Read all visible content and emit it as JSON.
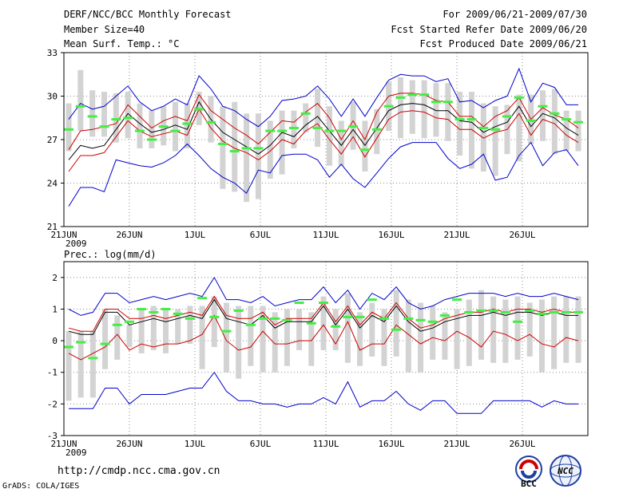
{
  "header": {
    "title": "DERF/NCC/BCC Monthly Forecast",
    "member_size": "Member Size=40",
    "variable": "Mean Surf. Temp.: °C",
    "period": "For 2009/06/21-2009/07/30",
    "started": "Fcst Started Refer Date 2009/06/20",
    "produced": "Fcst Produced Date 2009/06/21"
  },
  "footer": {
    "url": "http://cmdp.ncc.cma.gov.cn",
    "grads": "GrADS: COLA/IGES",
    "logo_left": "BCC",
    "logo_right": "NCC"
  },
  "colors": {
    "mean": "#000000",
    "inner_band": "#cc0000",
    "outer_band": "#0000cc",
    "box": "#d3d3d3",
    "climate": "#44ee44",
    "grid": "#888888"
  },
  "chart_data": [
    {
      "type": "line",
      "title": "Mean Surf. Temp.: °C",
      "x_tick_labels": [
        "21JUN",
        "26JUN",
        "1JUL",
        "6JUL",
        "11JUL",
        "16JUL",
        "21JUL",
        "26JUL"
      ],
      "x_year_label": "2009",
      "x_days": 40,
      "ylim": [
        21,
        33
      ],
      "y_ticks": [
        21,
        24,
        27,
        30,
        33
      ],
      "series": [
        {
          "name": "ensemble_mean",
          "values": [
            25.6,
            26.6,
            26.4,
            26.6,
            27.7,
            28.8,
            28.1,
            27.5,
            27.7,
            28.0,
            27.7,
            29.6,
            28.4,
            27.5,
            27.0,
            26.5,
            26.0,
            26.6,
            27.5,
            27.2,
            28.0,
            28.6,
            27.6,
            26.6,
            27.7,
            26.6,
            27.8,
            29.0,
            29.4,
            29.5,
            29.4,
            29.0,
            29.0,
            28.3,
            28.2,
            27.5,
            27.9,
            28.2,
            29.3,
            27.9,
            28.8,
            28.5,
            27.8,
            27.3
          ]
        },
        {
          "name": "upper_inner",
          "values": [
            26.3,
            27.6,
            27.7,
            27.9,
            28.1,
            29.4,
            28.6,
            27.8,
            28.3,
            28.6,
            28.3,
            30.1,
            29.0,
            28.4,
            27.8,
            27.3,
            26.7,
            27.5,
            28.3,
            28.2,
            28.9,
            29.5,
            28.5,
            27.0,
            28.3,
            27.0,
            28.9,
            30.0,
            30.2,
            30.2,
            30.1,
            29.7,
            29.6,
            28.6,
            28.6,
            27.9,
            28.6,
            29.0,
            29.9,
            28.4,
            29.2,
            28.7,
            28.4,
            27.8
          ]
        },
        {
          "name": "lower_inner",
          "values": [
            24.8,
            25.9,
            25.9,
            26.1,
            27.2,
            28.3,
            27.6,
            27.2,
            27.4,
            27.6,
            27.3,
            29.1,
            27.8,
            26.9,
            26.4,
            26.1,
            25.6,
            26.2,
            27.0,
            26.7,
            27.6,
            28.1,
            27.0,
            26.0,
            27.2,
            25.8,
            27.1,
            28.4,
            28.9,
            29.0,
            28.9,
            28.5,
            28.4,
            27.7,
            27.7,
            27.1,
            27.5,
            27.7,
            28.8,
            27.3,
            28.4,
            28.1,
            27.3,
            26.8
          ]
        },
        {
          "name": "upper_outer",
          "values": [
            28.4,
            29.5,
            29.1,
            29.3,
            30.0,
            30.7,
            29.6,
            29.0,
            29.3,
            29.8,
            29.4,
            31.4,
            30.5,
            29.3,
            29.0,
            28.4,
            27.9,
            28.6,
            29.7,
            29.8,
            30.0,
            30.7,
            29.8,
            28.6,
            29.8,
            28.6,
            29.9,
            31.1,
            31.5,
            31.4,
            31.4,
            31.0,
            31.2,
            29.6,
            29.7,
            29.2,
            29.7,
            30.0,
            31.9,
            29.6,
            30.9,
            30.6,
            29.4,
            29.4
          ]
        },
        {
          "name": "lower_outer",
          "values": [
            22.4,
            23.7,
            23.7,
            23.4,
            25.6,
            25.4,
            25.2,
            25.1,
            25.4,
            25.9,
            26.7,
            25.9,
            25.0,
            24.4,
            24.0,
            23.3,
            24.9,
            24.7,
            25.9,
            26.0,
            26.0,
            25.6,
            24.4,
            25.3,
            24.3,
            23.7,
            24.7,
            25.7,
            26.5,
            26.8,
            26.8,
            26.8,
            25.7,
            25.0,
            25.3,
            26.0,
            24.2,
            24.4,
            25.9,
            26.8,
            25.2,
            26.1,
            26.3,
            25.2
          ]
        }
      ],
      "boxes": {
        "high": [
          29.5,
          31.8,
          30.4,
          30.3,
          30.2,
          30.3,
          29.5,
          29.0,
          29.3,
          29.6,
          29.5,
          30.3,
          30.0,
          29.3,
          29.6,
          28.8,
          28.8,
          28.3,
          29.0,
          29.0,
          29.5,
          30.5,
          29.3,
          28.3,
          29.6,
          28.3,
          29.1,
          31.0,
          31.3,
          31.1,
          31.1,
          30.9,
          30.9,
          30.3,
          30.3,
          29.5,
          29.3,
          29.4,
          30.1,
          30.1,
          30.4,
          30.5,
          29.0,
          29.0
        ],
        "low": [
          26.2,
          27.6,
          27.2,
          27.2,
          26.8,
          27.1,
          26.4,
          26.4,
          26.6,
          26.2,
          26.4,
          28.0,
          26.8,
          23.6,
          23.4,
          22.7,
          22.9,
          24.3,
          24.6,
          26.4,
          27.5,
          26.5,
          25.2,
          25.2,
          26.3,
          24.8,
          26.0,
          27.6,
          27.1,
          27.4,
          27.1,
          27.2,
          26.9,
          25.9,
          25.0,
          24.8,
          24.5,
          26.0,
          25.5,
          26.7,
          26.9,
          26.0,
          26.2,
          26.2
        ]
      },
      "climatology": [
        27.7,
        29.3,
        28.6,
        27.9,
        28.4,
        28.5,
        27.6,
        27.0,
        27.9,
        27.6,
        28.1,
        29.1,
        28.2,
        26.7,
        26.2,
        26.4,
        26.4,
        27.6,
        27.6,
        27.8,
        28.8,
        27.8,
        27.6,
        27.6,
        27.9,
        26.3,
        27.7,
        29.3,
        29.9,
        30.1,
        30.1,
        29.6,
        29.6,
        28.4,
        28.4,
        27.8,
        27.7,
        28.6,
        29.9,
        28.3,
        29.3,
        28.8,
        28.4,
        28.2
      ]
    },
    {
      "type": "line",
      "title": "Prec.: log(mm/d)",
      "x_tick_labels": [
        "21JUN",
        "26JUN",
        "1JUL",
        "6JUL",
        "11JUL",
        "16JUL",
        "21JUL",
        "26JUL"
      ],
      "x_year_label": "2009",
      "x_days": 40,
      "ylim": [
        -3,
        2.5
      ],
      "y_ticks": [
        -3,
        -2,
        -1,
        0,
        1,
        2
      ],
      "series": [
        {
          "name": "ensemble_mean",
          "values": [
            0.3,
            0.2,
            0.2,
            0.9,
            0.9,
            0.5,
            0.6,
            0.7,
            0.6,
            0.7,
            0.8,
            0.7,
            1.3,
            0.7,
            0.6,
            0.5,
            0.8,
            0.4,
            0.6,
            0.6,
            0.6,
            1.1,
            0.5,
            1.0,
            0.4,
            0.8,
            0.6,
            1.1,
            0.6,
            0.3,
            0.4,
            0.6,
            0.7,
            0.8,
            0.8,
            0.9,
            0.8,
            0.9,
            0.9,
            0.8,
            0.9,
            0.8,
            0.8
          ]
        },
        {
          "name": "upper_inner",
          "values": [
            0.4,
            0.3,
            0.3,
            1.0,
            1.0,
            0.7,
            0.7,
            0.8,
            0.7,
            0.8,
            0.9,
            0.8,
            1.4,
            0.8,
            0.7,
            0.7,
            0.9,
            0.5,
            0.7,
            0.7,
            0.7,
            1.2,
            0.6,
            1.1,
            0.5,
            0.9,
            0.7,
            1.2,
            0.7,
            0.4,
            0.5,
            0.7,
            0.8,
            0.9,
            0.9,
            1.0,
            0.9,
            1.0,
            1.0,
            0.9,
            1.0,
            0.9,
            0.9
          ]
        },
        {
          "name": "lower_inner",
          "values": [
            -0.4,
            -0.6,
            -0.4,
            -0.2,
            0.2,
            -0.3,
            -0.1,
            -0.2,
            -0.1,
            -0.1,
            0.0,
            0.2,
            0.8,
            0.0,
            -0.3,
            -0.2,
            0.3,
            -0.1,
            -0.1,
            0.0,
            0.0,
            0.5,
            -0.1,
            0.6,
            -0.3,
            -0.1,
            -0.1,
            0.5,
            0.2,
            -0.1,
            0.1,
            0.0,
            0.3,
            0.1,
            -0.2,
            0.3,
            0.2,
            0.0,
            0.2,
            -0.1,
            -0.2,
            0.1,
            0.0
          ]
        },
        {
          "name": "upper_outer",
          "values": [
            1.0,
            0.8,
            0.9,
            1.5,
            1.5,
            1.2,
            1.3,
            1.4,
            1.3,
            1.4,
            1.5,
            1.4,
            2.0,
            1.3,
            1.3,
            1.2,
            1.4,
            1.1,
            1.2,
            1.3,
            1.3,
            1.7,
            1.2,
            1.6,
            1.0,
            1.5,
            1.3,
            1.7,
            1.2,
            1.0,
            1.1,
            1.3,
            1.4,
            1.5,
            1.5,
            1.5,
            1.4,
            1.5,
            1.4,
            1.4,
            1.5,
            1.4,
            1.3
          ]
        },
        {
          "name": "lower_outer",
          "values": [
            -2.15,
            -2.15,
            -2.15,
            -1.5,
            -1.5,
            -2.0,
            -1.7,
            -1.7,
            -1.7,
            -1.6,
            -1.5,
            -1.5,
            -1.0,
            -1.6,
            -1.9,
            -1.9,
            -2.0,
            -2.0,
            -2.1,
            -2.0,
            -2.0,
            -1.8,
            -2.0,
            -1.3,
            -2.1,
            -1.9,
            -1.9,
            -1.6,
            -2.0,
            -2.2,
            -1.9,
            -1.9,
            -2.3,
            -2.3,
            -2.3,
            -1.9,
            -1.9,
            -1.9,
            -1.9,
            -2.1,
            -1.9,
            -2.0,
            -2.0
          ]
        },
        {
          "name": "upper_outer_tail",
          "values": []
        }
      ],
      "boxes": {
        "high": [
          0.3,
          0.3,
          0.3,
          1.0,
          0.8,
          0.5,
          1.0,
          1.1,
          1.0,
          1.0,
          1.1,
          1.1,
          1.4,
          1.2,
          1.1,
          1.1,
          1.1,
          0.9,
          1.0,
          1.0,
          0.9,
          1.4,
          1.0,
          1.5,
          0.9,
          1.2,
          1.0,
          1.6,
          1.3,
          1.2,
          1.1,
          0.9,
          1.0,
          1.3,
          1.6,
          1.4,
          1.3,
          1.4,
          1.2,
          1.3,
          1.4,
          1.4,
          1.4
        ],
        "low": [
          -1.9,
          -1.8,
          -1.8,
          -0.9,
          -0.6,
          -0.2,
          -0.4,
          -0.3,
          -0.4,
          -0.1,
          -0.1,
          -0.9,
          -0.2,
          -1.0,
          -1.2,
          -0.8,
          -1.0,
          -1.0,
          -0.8,
          -0.3,
          -0.8,
          -0.3,
          -0.3,
          -0.7,
          -0.8,
          -0.5,
          -0.8,
          -0.5,
          -1.0,
          -1.0,
          -0.6,
          -0.6,
          -0.9,
          -0.8,
          -0.6,
          -0.7,
          -0.7,
          -0.6,
          -0.5,
          -1.0,
          -0.9,
          -0.7,
          -0.7
        ]
      },
      "climatology": [
        -0.2,
        -0.05,
        -0.55,
        -0.1,
        0.5,
        0.6,
        1.0,
        0.9,
        1.0,
        0.85,
        0.7,
        1.35,
        0.75,
        0.3,
        0.95,
        0.5,
        0.7,
        0.7,
        0.65,
        1.2,
        0.55,
        1.2,
        0.45,
        0.75,
        0.75,
        1.3,
        0.7,
        0.35,
        0.7,
        0.65,
        0.6,
        0.8,
        1.3,
        0.9,
        0.95,
        0.95,
        0.9,
        0.6,
        0.95,
        0.85,
        0.9,
        0.9,
        0.9
      ]
    }
  ]
}
